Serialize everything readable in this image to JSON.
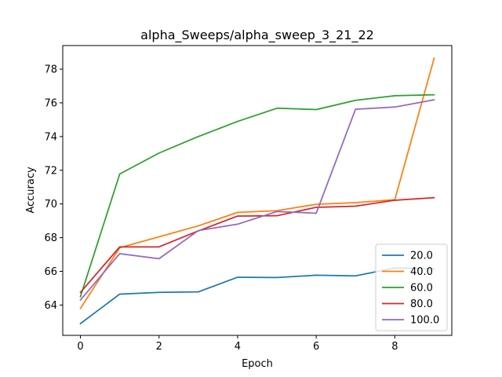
{
  "chart_data": {
    "type": "line",
    "title": "alpha_Sweeps/alpha_sweep_3_21_22",
    "xlabel": "Epoch",
    "ylabel": "Accuracy",
    "xlim": [
      -0.45,
      9.45
    ],
    "ylim": [
      62.2,
      79.4
    ],
    "xticks": [
      0,
      2,
      4,
      6,
      8
    ],
    "yticks": [
      64,
      66,
      68,
      70,
      72,
      74,
      76,
      78
    ],
    "legend_position": "lower right",
    "x": [
      0,
      1,
      2,
      3,
      4,
      5,
      6,
      7,
      8,
      9
    ],
    "series": [
      {
        "name": "20.0",
        "color": "#1f77b4",
        "values": [
          62.9,
          64.65,
          64.75,
          64.78,
          65.65,
          65.63,
          65.77,
          65.73,
          66.2,
          66.15
        ]
      },
      {
        "name": "40.0",
        "color": "#ff7f0e",
        "values": [
          63.8,
          67.4,
          68.05,
          68.7,
          69.5,
          69.6,
          69.98,
          70.08,
          70.25,
          78.65
        ]
      },
      {
        "name": "60.0",
        "color": "#2ca02c",
        "values": [
          64.5,
          71.78,
          73.02,
          74.0,
          74.9,
          75.68,
          75.6,
          76.15,
          76.42,
          76.48
        ]
      },
      {
        "name": "80.0",
        "color": "#d62728",
        "values": [
          64.75,
          67.45,
          67.45,
          68.4,
          69.28,
          69.3,
          69.8,
          69.87,
          70.22,
          70.37
        ]
      },
      {
        "name": "100.0",
        "color": "#9467bd",
        "values": [
          64.3,
          67.05,
          66.75,
          68.42,
          68.8,
          69.55,
          69.45,
          75.62,
          75.75,
          76.18
        ]
      }
    ]
  }
}
